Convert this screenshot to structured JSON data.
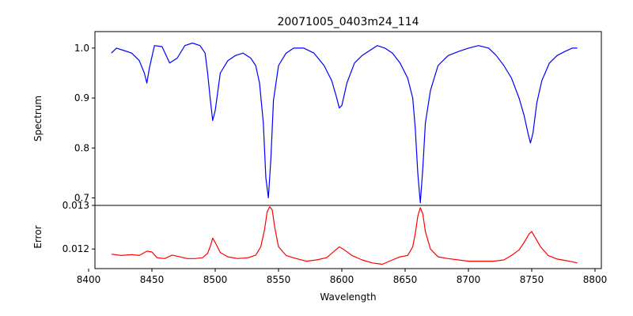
{
  "chart_data": [
    {
      "type": "line",
      "title": "20071005_0403m24_114",
      "xlabel": "",
      "ylabel": "Spectrum",
      "xlim": [
        8405,
        8805
      ],
      "ylim": [
        0.685,
        1.033
      ],
      "yticks": [
        0.7,
        0.8,
        0.9,
        1.0
      ],
      "ytick_labels": [
        "0.7",
        "0.8",
        "0.9",
        "1.0"
      ],
      "grid": false,
      "series": [
        {
          "color": "#0000ff",
          "x": [
            8418,
            8422,
            8428,
            8434,
            8440,
            8444,
            8446,
            8448,
            8452,
            8458,
            8464,
            8470,
            8476,
            8482,
            8488,
            8492,
            8494,
            8496,
            8498,
            8500,
            8504,
            8510,
            8516,
            8522,
            8528,
            8532,
            8535,
            8538,
            8540,
            8542,
            8544,
            8546,
            8550,
            8556,
            8562,
            8570,
            8578,
            8586,
            8592,
            8596,
            8598,
            8600,
            8604,
            8610,
            8616,
            8622,
            8628,
            8634,
            8640,
            8646,
            8652,
            8656,
            8658,
            8660,
            8662,
            8664,
            8666,
            8670,
            8676,
            8684,
            8692,
            8700,
            8708,
            8716,
            8722,
            8728,
            8734,
            8740,
            8744,
            8747,
            8749,
            8751,
            8754,
            8758,
            8764,
            8770,
            8776,
            8782,
            8786
          ],
          "values": [
            0.99,
            1.0,
            0.995,
            0.99,
            0.975,
            0.95,
            0.93,
            0.96,
            1.005,
            1.003,
            0.97,
            0.98,
            1.005,
            1.01,
            1.005,
            0.99,
            0.95,
            0.9,
            0.855,
            0.875,
            0.95,
            0.975,
            0.985,
            0.99,
            0.98,
            0.965,
            0.93,
            0.85,
            0.74,
            0.7,
            0.78,
            0.895,
            0.965,
            0.99,
            1.0,
            1.0,
            0.99,
            0.965,
            0.935,
            0.9,
            0.88,
            0.885,
            0.93,
            0.97,
            0.985,
            0.995,
            1.005,
            1.0,
            0.99,
            0.97,
            0.94,
            0.9,
            0.84,
            0.75,
            0.69,
            0.76,
            0.85,
            0.915,
            0.965,
            0.985,
            0.993,
            1.0,
            1.005,
            1.0,
            0.985,
            0.965,
            0.94,
            0.9,
            0.865,
            0.83,
            0.81,
            0.83,
            0.89,
            0.935,
            0.97,
            0.985,
            0.993,
            1.0,
            1.0
          ]
        }
      ]
    },
    {
      "type": "line",
      "title": "",
      "xlabel": "Wavelength",
      "ylabel": "Error",
      "xlim": [
        8405,
        8805
      ],
      "ylim": [
        0.01155,
        0.013
      ],
      "xticks": [
        8400,
        8450,
        8500,
        8550,
        8600,
        8650,
        8700,
        8750,
        8800
      ],
      "xtick_labels": [
        "8400",
        "8450",
        "8500",
        "8550",
        "8600",
        "8650",
        "8700",
        "8750",
        "8800"
      ],
      "yticks": [
        0.012,
        0.013
      ],
      "ytick_labels": [
        "0.012",
        "0.013"
      ],
      "grid": false,
      "series": [
        {
          "color": "#ff0000",
          "x": [
            8418,
            8426,
            8434,
            8440,
            8446,
            8450,
            8454,
            8460,
            8466,
            8472,
            8478,
            8484,
            8490,
            8494,
            8496,
            8498,
            8500,
            8504,
            8510,
            8518,
            8526,
            8532,
            8536,
            8539,
            8541,
            8543,
            8545,
            8547,
            8550,
            8556,
            8564,
            8572,
            8580,
            8588,
            8594,
            8598,
            8602,
            8608,
            8616,
            8624,
            8632,
            8640,
            8646,
            8652,
            8656,
            8658,
            8660,
            8662,
            8664,
            8666,
            8670,
            8676,
            8684,
            8692,
            8700,
            8710,
            8720,
            8728,
            8734,
            8740,
            8744,
            8748,
            8750,
            8753,
            8757,
            8763,
            8770,
            8778,
            8786
          ],
          "values": [
            0.01188,
            0.01185,
            0.01187,
            0.01185,
            0.01195,
            0.01193,
            0.0118,
            0.01178,
            0.01186,
            0.01182,
            0.01178,
            0.01178,
            0.0118,
            0.0119,
            0.01205,
            0.01225,
            0.01215,
            0.01192,
            0.01182,
            0.01178,
            0.0118,
            0.01186,
            0.01205,
            0.01245,
            0.01285,
            0.01297,
            0.0129,
            0.0125,
            0.01205,
            0.01185,
            0.01178,
            0.01172,
            0.01175,
            0.0118,
            0.01195,
            0.01205,
            0.01198,
            0.01185,
            0.01175,
            0.01168,
            0.01165,
            0.01175,
            0.01182,
            0.01185,
            0.01205,
            0.01235,
            0.01275,
            0.01295,
            0.0128,
            0.0124,
            0.012,
            0.01182,
            0.01178,
            0.01175,
            0.01172,
            0.01172,
            0.01172,
            0.01175,
            0.01185,
            0.01198,
            0.01215,
            0.01235,
            0.0124,
            0.01225,
            0.01205,
            0.01185,
            0.01177,
            0.01173,
            0.01168
          ]
        }
      ]
    }
  ]
}
